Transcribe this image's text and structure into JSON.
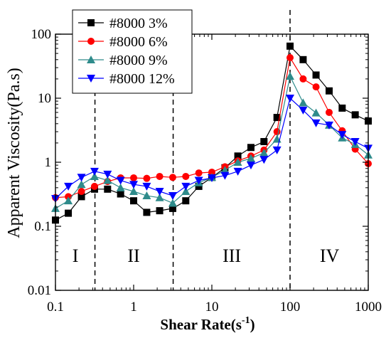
{
  "chart_data": {
    "type": "line",
    "title": "",
    "xlabel": "Shear Rate(s",
    "xlabel_sup": "-1",
    "xlabel_close": ")",
    "ylabel": "Apparent Viscosity(Pa.s)",
    "xscale": "log",
    "yscale": "log",
    "xlim": [
      0.1,
      1000
    ],
    "ylim": [
      0.01,
      100
    ],
    "x_ticks": [
      "0.1",
      "1",
      "10",
      "100",
      "1000"
    ],
    "y_ticks": [
      "0.01",
      "0.1",
      "1",
      "10",
      "100"
    ],
    "legend_position": "top-left",
    "dashed_vlines": [
      0.32,
      3.2,
      100
    ],
    "regions": [
      {
        "label": "I",
        "x": 0.18,
        "y": 0.1
      },
      {
        "label": "II",
        "x": 1.0,
        "y": 0.1
      },
      {
        "label": "III",
        "x": 18,
        "y": 0.1
      },
      {
        "label": "IV",
        "x": 320,
        "y": 0.1
      }
    ],
    "series": [
      {
        "name": "#8000 3%",
        "color": "#000000",
        "marker": "square",
        "x": [
          0.1,
          0.146,
          0.215,
          0.316,
          0.464,
          0.681,
          1.0,
          1.47,
          2.15,
          3.16,
          4.64,
          6.81,
          10,
          14.7,
          21.5,
          31.6,
          46.4,
          68.1,
          100,
          147,
          215,
          316,
          464,
          681,
          1000
        ],
        "y": [
          0.125,
          0.16,
          0.29,
          0.38,
          0.38,
          0.32,
          0.25,
          0.165,
          0.175,
          0.19,
          0.25,
          0.42,
          0.58,
          0.82,
          1.25,
          1.7,
          2.1,
          5.0,
          65,
          40,
          23,
          13,
          7.0,
          5.5,
          4.4
        ]
      },
      {
        "name": "#8000 6%",
        "color": "#ff0000",
        "marker": "circle",
        "x": [
          0.1,
          0.146,
          0.215,
          0.316,
          0.464,
          0.681,
          1.0,
          1.47,
          2.15,
          3.16,
          4.64,
          6.81,
          10,
          14.7,
          21.5,
          31.6,
          46.4,
          68.1,
          100,
          147,
          215,
          316,
          464,
          681,
          1000
        ],
        "y": [
          0.28,
          0.29,
          0.35,
          0.42,
          0.5,
          0.57,
          0.57,
          0.56,
          0.6,
          0.58,
          0.6,
          0.68,
          0.7,
          0.85,
          1.05,
          1.25,
          1.55,
          3.0,
          43,
          20,
          15,
          6.0,
          3.1,
          1.6,
          0.95
        ]
      },
      {
        "name": "#8000 9%",
        "color": "#2e8b8b",
        "marker": "triangle-up",
        "x": [
          0.1,
          0.146,
          0.215,
          0.316,
          0.464,
          0.681,
          1.0,
          1.47,
          2.15,
          3.16,
          4.64,
          6.81,
          10,
          14.7,
          21.5,
          31.6,
          46.4,
          68.1,
          100,
          147,
          215,
          316,
          464,
          681,
          1000
        ],
        "y": [
          0.19,
          0.25,
          0.45,
          0.6,
          0.52,
          0.4,
          0.35,
          0.3,
          0.28,
          0.23,
          0.35,
          0.48,
          0.58,
          0.75,
          1.0,
          1.15,
          1.4,
          2.3,
          22,
          8.5,
          5.9,
          3.8,
          2.4,
          1.9,
          1.3
        ]
      },
      {
        "name": "#8000 12%",
        "color": "#0000ff",
        "marker": "triangle-down",
        "x": [
          0.1,
          0.146,
          0.215,
          0.316,
          0.464,
          0.681,
          1.0,
          1.47,
          2.15,
          3.16,
          4.64,
          6.81,
          10,
          14.7,
          21.5,
          31.6,
          46.4,
          68.1,
          100,
          147,
          215,
          316,
          464,
          681,
          1000
        ],
        "y": [
          0.27,
          0.42,
          0.58,
          0.72,
          0.65,
          0.52,
          0.45,
          0.42,
          0.35,
          0.3,
          0.42,
          0.52,
          0.57,
          0.62,
          0.72,
          0.9,
          1.1,
          1.55,
          10,
          6.5,
          4.1,
          3.8,
          2.7,
          2.1,
          1.65
        ]
      }
    ]
  }
}
